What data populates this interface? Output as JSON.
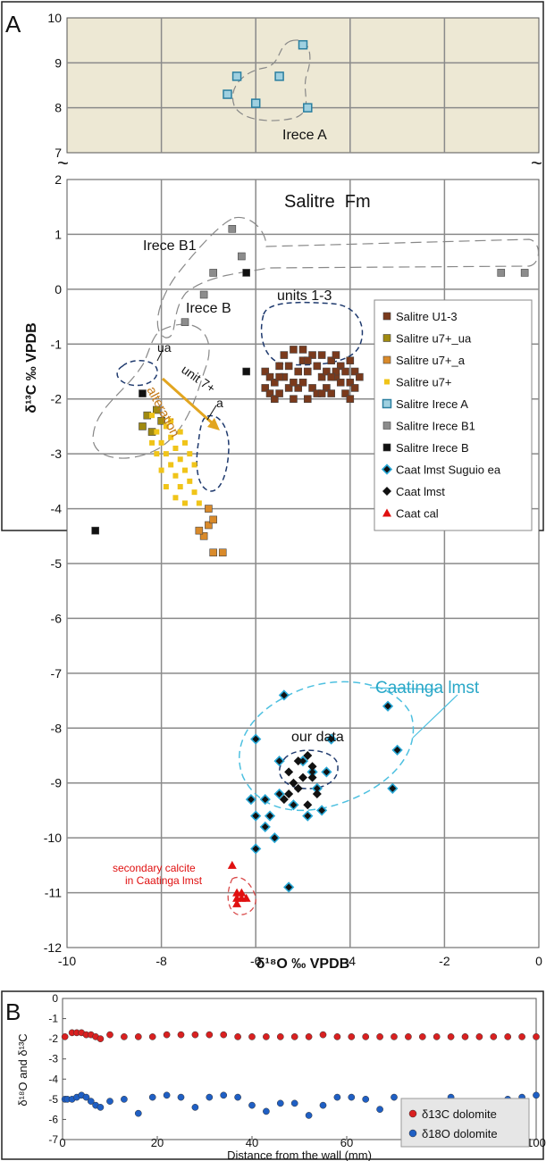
{
  "panel_a": {
    "letter": "A",
    "x_axis_label": "δ¹⁸O ‰ VPDB",
    "y_axis_label": "δ¹³C ‰ VPDB",
    "annotations": {
      "irece_a": "Irece A",
      "salitre_fm": "Salitre  Fm",
      "irece_b1": "Irece B1",
      "irece_b": "Irece B",
      "units_1_3": "units 1-3",
      "ua": "ua",
      "unit_7": "unit 7+",
      "a": "a",
      "alteration": "alteration",
      "caatinga_lmst": "Caatinga lmst",
      "our_data": "our data",
      "secondary_calcite_1": "secondary calcite",
      "secondary_calcite_2": "in Caatinga lmst"
    },
    "legend": [
      {
        "name": "Salitre U1-3",
        "color": "#7a3a1c",
        "marker": "square"
      },
      {
        "name": "Salitre u7+_ua",
        "color": "#a08a10",
        "marker": "square"
      },
      {
        "name": "Salitre u7+_a",
        "color": "#d98a2a",
        "marker": "square"
      },
      {
        "name": "Salitre u7+",
        "color": "#f0c419",
        "marker": "small-square"
      },
      {
        "name": "Salitre Irece A",
        "color": "#7fbcd2",
        "marker": "square-outline"
      },
      {
        "name": "Salitre Irece B1",
        "color": "#8c8c8c",
        "marker": "square"
      },
      {
        "name": "Salitre Irece B",
        "color": "#111111",
        "marker": "square"
      },
      {
        "name": "Caat lmst Suguio ea",
        "color": "#29a8d6",
        "marker": "diamond-outline"
      },
      {
        "name": "Caat lmst",
        "color": "#111111",
        "marker": "diamond"
      },
      {
        "name": "Caat cal",
        "color": "#e01010",
        "marker": "triangle"
      }
    ],
    "colors": {
      "upper_panel_bg": "#ede8d4",
      "grid": "#8a8a8a",
      "upper_ellipse": "#888888",
      "units_ellipse": "#1f3a6e",
      "caatinga_ellipse": "#4dc0e0",
      "calcite_ellipse": "#d94a4a",
      "alteration_arrow": "#e2a520"
    }
  },
  "panel_b": {
    "letter": "B",
    "x_axis_label": "Distance from the wall (mm)",
    "y_axis_label": "δ¹⁸O and δ¹³C",
    "legend": [
      {
        "name": "δ13C dolomite",
        "color": "#d92020"
      },
      {
        "name": "δ18O dolomite",
        "color": "#1f5fc4"
      }
    ]
  },
  "chart_data": [
    {
      "type": "scatter",
      "panel": "A-upper",
      "xlim": [
        -10,
        0
      ],
      "ylim": [
        7,
        10
      ],
      "x_ticks": [
        -10,
        -8,
        -6,
        -4,
        -2,
        0
      ],
      "y_ticks": [
        "7",
        "8",
        "9",
        "10"
      ],
      "grid": true,
      "series": [
        {
          "name": "Salitre Irece A",
          "points": [
            [
              -5.0,
              9.4
            ],
            [
              -6.4,
              8.7
            ],
            [
              -5.5,
              8.7
            ],
            [
              -6.6,
              8.3
            ],
            [
              -6.0,
              8.1
            ],
            [
              -4.9,
              8.0
            ]
          ]
        }
      ]
    },
    {
      "type": "scatter",
      "panel": "A-lower",
      "xlim": [
        -10,
        0
      ],
      "ylim": [
        -12,
        2
      ],
      "x_ticks": [
        "-10",
        "-8",
        "-6",
        "-4",
        "-2",
        "0"
      ],
      "y_ticks": [
        "-12",
        "-11",
        "-10",
        "-9",
        "-8",
        "-7",
        "-6",
        "-5",
        "-4",
        "-3",
        "-2",
        "-1",
        "0",
        "1",
        "2"
      ],
      "grid": true,
      "series": [
        {
          "name": "Salitre Irece B1",
          "points": [
            [
              -6.5,
              1.1
            ],
            [
              -6.3,
              0.6
            ],
            [
              -6.9,
              0.3
            ],
            [
              -7.1,
              -0.1
            ],
            [
              -7.5,
              -0.6
            ],
            [
              -0.8,
              0.3
            ],
            [
              -0.3,
              0.3
            ]
          ]
        },
        {
          "name": "Salitre Irece B",
          "points": [
            [
              -6.2,
              0.3
            ],
            [
              -6.2,
              -1.5
            ],
            [
              -8.4,
              -1.9
            ],
            [
              -9.4,
              -4.4
            ]
          ]
        },
        {
          "name": "Salitre U1-3",
          "points": [
            [
              -5.8,
              -1.8
            ],
            [
              -5.8,
              -1.5
            ],
            [
              -5.7,
              -1.9
            ],
            [
              -5.7,
              -1.6
            ],
            [
              -5.6,
              -2.0
            ],
            [
              -5.6,
              -1.7
            ],
            [
              -5.5,
              -1.4
            ],
            [
              -5.5,
              -1.9
            ],
            [
              -5.4,
              -1.2
            ],
            [
              -5.4,
              -1.6
            ],
            [
              -5.3,
              -1.8
            ],
            [
              -5.3,
              -1.4
            ],
            [
              -5.2,
              -1.1
            ],
            [
              -5.2,
              -2.0
            ],
            [
              -5.1,
              -1.5
            ],
            [
              -5.1,
              -1.8
            ],
            [
              -5.0,
              -1.3
            ],
            [
              -5.0,
              -1.7
            ],
            [
              -4.9,
              -2.0
            ],
            [
              -4.9,
              -1.5
            ],
            [
              -4.8,
              -1.2
            ],
            [
              -4.8,
              -1.8
            ],
            [
              -4.7,
              -1.4
            ],
            [
              -4.7,
              -1.9
            ],
            [
              -4.6,
              -1.6
            ],
            [
              -4.6,
              -1.2
            ],
            [
              -4.5,
              -1.8
            ],
            [
              -4.5,
              -1.5
            ],
            [
              -4.4,
              -1.3
            ],
            [
              -4.4,
              -1.9
            ],
            [
              -4.3,
              -1.6
            ],
            [
              -4.3,
              -1.2
            ],
            [
              -4.2,
              -1.7
            ],
            [
              -4.2,
              -1.4
            ],
            [
              -4.1,
              -1.9
            ],
            [
              -4.1,
              -1.5
            ],
            [
              -4.0,
              -1.3
            ],
            [
              -4.0,
              -1.7
            ],
            [
              -3.9,
              -1.5
            ],
            [
              -3.9,
              -1.8
            ],
            [
              -3.8,
              -1.6
            ],
            [
              -5.5,
              -1.6
            ],
            [
              -5.2,
              -1.7
            ],
            [
              -4.9,
              -1.3
            ],
            [
              -4.6,
              -1.9
            ],
            [
              -4.3,
              -1.5
            ],
            [
              -4.0,
              -2.0
            ],
            [
              -5.0,
              -1.1
            ],
            [
              -4.4,
              -1.6
            ]
          ]
        },
        {
          "name": "Salitre u7+_ua",
          "points": [
            [
              -8.3,
              -2.3
            ],
            [
              -8.2,
              -2.6
            ],
            [
              -8.4,
              -2.5
            ],
            [
              -8.1,
              -2.2
            ],
            [
              -8.0,
              -2.4
            ]
          ]
        },
        {
          "name": "Salitre u7+",
          "points": [
            [
              -8.2,
              -2.3
            ],
            [
              -8.1,
              -2.6
            ],
            [
              -8.0,
              -2.8
            ],
            [
              -7.9,
              -2.5
            ],
            [
              -7.9,
              -3.0
            ],
            [
              -7.8,
              -2.7
            ],
            [
              -7.8,
              -3.2
            ],
            [
              -7.7,
              -2.9
            ],
            [
              -7.7,
              -3.4
            ],
            [
              -7.6,
              -3.1
            ],
            [
              -7.6,
              -3.6
            ],
            [
              -7.5,
              -3.3
            ],
            [
              -7.5,
              -2.8
            ],
            [
              -7.4,
              -3.5
            ],
            [
              -7.4,
              -3.0
            ],
            [
              -7.3,
              -3.7
            ],
            [
              -7.3,
              -3.2
            ],
            [
              -7.2,
              -3.9
            ],
            [
              -8.0,
              -3.3
            ],
            [
              -7.9,
              -3.6
            ],
            [
              -7.7,
              -3.8
            ],
            [
              -8.1,
              -3.0
            ],
            [
              -7.6,
              -2.6
            ],
            [
              -7.5,
              -3.9
            ],
            [
              -8.2,
              -2.8
            ],
            [
              -7.8,
              -2.4
            ]
          ]
        },
        {
          "name": "Salitre u7+_a",
          "points": [
            [
              -7.0,
              -4.0
            ],
            [
              -7.0,
              -4.3
            ],
            [
              -7.1,
              -4.5
            ],
            [
              -6.9,
              -4.2
            ],
            [
              -7.2,
              -4.4
            ],
            [
              -6.9,
              -4.8
            ],
            [
              -6.7,
              -4.8
            ]
          ]
        },
        {
          "name": "Caat lmst Suguio ea",
          "points": [
            [
              -5.4,
              -7.4
            ],
            [
              -6.0,
              -8.2
            ],
            [
              -5.8,
              -9.3
            ],
            [
              -6.1,
              -9.3
            ],
            [
              -6.0,
              -9.6
            ],
            [
              -5.8,
              -9.8
            ],
            [
              -5.7,
              -9.6
            ],
            [
              -5.6,
              -10.0
            ],
            [
              -6.0,
              -10.2
            ],
            [
              -5.3,
              -10.9
            ],
            [
              -5.5,
              -8.6
            ],
            [
              -5.0,
              -8.6
            ],
            [
              -4.8,
              -8.8
            ],
            [
              -4.5,
              -8.8
            ],
            [
              -4.7,
              -9.1
            ],
            [
              -4.6,
              -9.5
            ],
            [
              -4.9,
              -9.6
            ],
            [
              -4.4,
              -8.2
            ],
            [
              -3.2,
              -7.6
            ],
            [
              -3.0,
              -8.4
            ],
            [
              -3.1,
              -9.1
            ],
            [
              -5.2,
              -9.4
            ],
            [
              -5.5,
              -9.2
            ]
          ]
        },
        {
          "name": "Caat lmst",
          "points": [
            [
              -5.3,
              -8.8
            ],
            [
              -5.1,
              -8.6
            ],
            [
              -5.0,
              -8.9
            ],
            [
              -4.9,
              -8.5
            ],
            [
              -4.8,
              -8.7
            ],
            [
              -5.2,
              -9.0
            ],
            [
              -5.3,
              -9.2
            ],
            [
              -5.4,
              -9.3
            ],
            [
              -5.1,
              -9.1
            ],
            [
              -4.9,
              -9.4
            ],
            [
              -4.7,
              -9.2
            ],
            [
              -4.8,
              -8.9
            ]
          ]
        },
        {
          "name": "Caat cal",
          "points": [
            [
              -6.5,
              -10.5
            ],
            [
              -6.4,
              -11.0
            ],
            [
              -6.3,
              -11.1
            ],
            [
              -6.4,
              -11.1
            ],
            [
              -6.2,
              -11.1
            ],
            [
              -6.3,
              -11.0
            ],
            [
              -6.4,
              -11.2
            ]
          ]
        }
      ]
    },
    {
      "type": "scatter",
      "panel": "B",
      "xlim": [
        0,
        100
      ],
      "ylim": [
        -7,
        0
      ],
      "x_ticks": [
        "0",
        "20",
        "40",
        "60",
        "80",
        "100"
      ],
      "y_ticks": [
        "0",
        "-1",
        "-2",
        "-3",
        "-4",
        "-5",
        "-6",
        "-7"
      ],
      "grid": false,
      "legend_position": "right",
      "series": [
        {
          "name": "δ13C dolomite",
          "points": [
            [
              0.5,
              -1.9
            ],
            [
              2,
              -1.7
            ],
            [
              3,
              -1.7
            ],
            [
              4,
              -1.7
            ],
            [
              5,
              -1.8
            ],
            [
              6,
              -1.8
            ],
            [
              7,
              -1.9
            ],
            [
              8,
              -2.0
            ],
            [
              10,
              -1.8
            ],
            [
              13,
              -1.9
            ],
            [
              16,
              -1.9
            ],
            [
              19,
              -1.9
            ],
            [
              22,
              -1.8
            ],
            [
              25,
              -1.8
            ],
            [
              28,
              -1.8
            ],
            [
              31,
              -1.8
            ],
            [
              34,
              -1.8
            ],
            [
              37,
              -1.9
            ],
            [
              40,
              -1.9
            ],
            [
              43,
              -1.9
            ],
            [
              46,
              -1.9
            ],
            [
              49,
              -1.9
            ],
            [
              52,
              -1.9
            ],
            [
              55,
              -1.8
            ],
            [
              58,
              -1.9
            ],
            [
              61,
              -1.9
            ],
            [
              64,
              -1.9
            ],
            [
              67,
              -1.9
            ],
            [
              70,
              -1.9
            ],
            [
              73,
              -1.9
            ],
            [
              76,
              -1.9
            ],
            [
              79,
              -1.9
            ],
            [
              82,
              -1.9
            ],
            [
              85,
              -1.9
            ],
            [
              88,
              -1.9
            ],
            [
              91,
              -1.9
            ],
            [
              94,
              -1.9
            ],
            [
              97,
              -1.9
            ],
            [
              100,
              -1.9
            ]
          ]
        },
        {
          "name": "δ18O dolomite",
          "points": [
            [
              0.5,
              -5.0
            ],
            [
              1,
              -5.0
            ],
            [
              2,
              -5.0
            ],
            [
              3,
              -4.9
            ],
            [
              4,
              -4.8
            ],
            [
              5,
              -4.9
            ],
            [
              6,
              -5.1
            ],
            [
              7,
              -5.3
            ],
            [
              8,
              -5.4
            ],
            [
              10,
              -5.1
            ],
            [
              13,
              -5.0
            ],
            [
              16,
              -5.7
            ],
            [
              19,
              -4.9
            ],
            [
              22,
              -4.8
            ],
            [
              25,
              -4.9
            ],
            [
              28,
              -5.4
            ],
            [
              31,
              -4.9
            ],
            [
              34,
              -4.8
            ],
            [
              37,
              -4.9
            ],
            [
              40,
              -5.3
            ],
            [
              43,
              -5.6
            ],
            [
              46,
              -5.2
            ],
            [
              49,
              -5.2
            ],
            [
              52,
              -5.8
            ],
            [
              55,
              -5.3
            ],
            [
              58,
              -4.9
            ],
            [
              61,
              -4.9
            ],
            [
              64,
              -5.0
            ],
            [
              67,
              -5.5
            ],
            [
              70,
              -4.9
            ],
            [
              73,
              -5.5
            ],
            [
              76,
              -5.4
            ],
            [
              79,
              -5.5
            ],
            [
              82,
              -4.9
            ],
            [
              85,
              -5.6
            ],
            [
              88,
              -5.5
            ],
            [
              91,
              -5.2
            ],
            [
              94,
              -5.0
            ],
            [
              97,
              -4.9
            ],
            [
              100,
              -4.8
            ]
          ]
        }
      ]
    }
  ]
}
